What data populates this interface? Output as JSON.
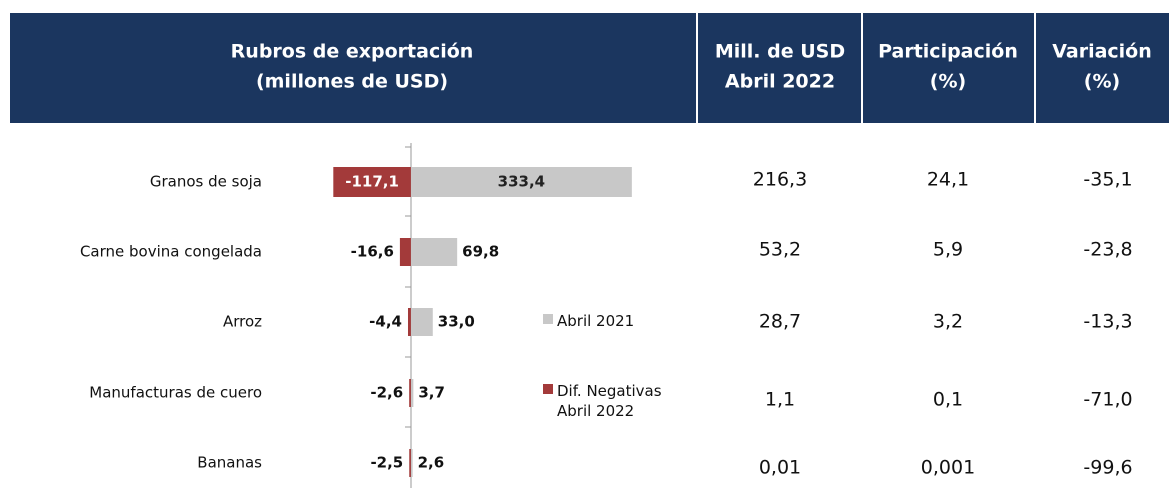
{
  "chart_data": {
    "type": "hbar",
    "categories": [
      "Granos de soja",
      "Carne bovina congelada",
      "Arroz",
      "Manufacturas de cuero",
      "Bananas"
    ],
    "series": [
      {
        "name": "Abril 2021",
        "color": "#c8c8c8",
        "values": [
          333.4,
          69.8,
          33.0,
          3.7,
          2.6
        ],
        "value_labels": [
          "333,4",
          "69,8",
          "33,0",
          "3,7",
          "2,6"
        ]
      },
      {
        "name": "Dif. Negativas Abril 2022",
        "color": "#a33a3a",
        "values": [
          -117.1,
          -16.6,
          -4.4,
          -2.6,
          -2.5
        ],
        "value_labels": [
          "-117,1",
          "-16,6",
          "-4,4",
          "-2,6",
          "-2,5"
        ]
      }
    ],
    "xlim": [
      -150,
      400
    ]
  },
  "table": {
    "headers": [
      [
        "Rubros de exportación",
        "(millones de USD)"
      ],
      [
        "Mill. de USD",
        "Abril 2022"
      ],
      [
        "Participación",
        "(%)"
      ],
      [
        "Variación",
        "(%)"
      ]
    ],
    "rows": [
      [
        "216,3",
        "24,1",
        "-35,1"
      ],
      [
        "53,2",
        "5,9",
        "-23,8"
      ],
      [
        "28,7",
        "3,2",
        "-13,3"
      ],
      [
        "1,1",
        "0,1",
        "-71,0"
      ],
      [
        "0,01",
        "0,001",
        "-99,6"
      ]
    ]
  }
}
